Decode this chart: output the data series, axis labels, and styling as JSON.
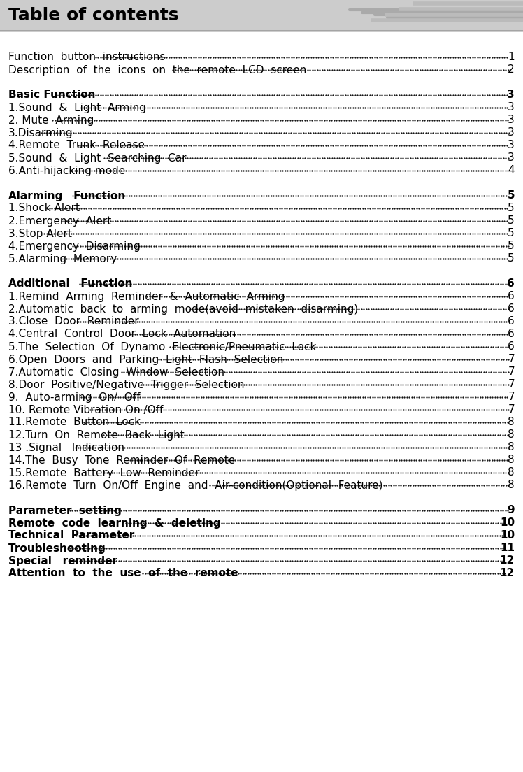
{
  "title": "Table of contents",
  "bg_color": "#ffffff",
  "header_bg": "#cccccc",
  "title_color": "#000000",
  "entries": [
    {
      "text": "Function  button  instructions",
      "dots": true,
      "page": "1",
      "bold": false,
      "indent": 0,
      "gap_before": true
    },
    {
      "text": "Description  of  the  icons  on  the  remote  LCD  screen",
      "dots": true,
      "page": "2",
      "bold": false,
      "indent": 0,
      "gap_before": false
    },
    {
      "text": "Basic Function",
      "dots": true,
      "page": "3",
      "bold": true,
      "indent": 0,
      "gap_before": true
    },
    {
      "text": "1.Sound  &  Light  Arming",
      "dots": true,
      "page": "3",
      "bold": false,
      "indent": 0,
      "gap_before": false
    },
    {
      "text": "2. Mute  Arming",
      "dots": true,
      "page": "3",
      "bold": false,
      "indent": 0,
      "gap_before": false
    },
    {
      "text": "3.Disarming",
      "dots": true,
      "page": "3",
      "bold": false,
      "indent": 0,
      "gap_before": false
    },
    {
      "text": "4.Remote  Trunk  Release",
      "dots": true,
      "page": "3",
      "bold": false,
      "indent": 0,
      "gap_before": false
    },
    {
      "text": "5.Sound  &  Light  Searching  Car",
      "dots": true,
      "page": "3",
      "bold": false,
      "indent": 0,
      "gap_before": false
    },
    {
      "text": "6.Anti-hijacking mode",
      "dots": true,
      "page": "4",
      "bold": false,
      "indent": 0,
      "gap_before": false
    },
    {
      "text": "Alarming   Function",
      "dots": true,
      "page": "5",
      "bold": true,
      "indent": 0,
      "gap_before": true
    },
    {
      "text": "1.Shock Alert",
      "dots": true,
      "page": "5",
      "bold": false,
      "indent": 0,
      "gap_before": false
    },
    {
      "text": "2.Emergency  Alert",
      "dots": true,
      "page": "5",
      "bold": false,
      "indent": 0,
      "gap_before": false
    },
    {
      "text": "3.Stop Alert",
      "dots": true,
      "page": "5",
      "bold": false,
      "indent": 0,
      "gap_before": false
    },
    {
      "text": "4.Emergency  Disarming",
      "dots": true,
      "page": "5",
      "bold": false,
      "indent": 0,
      "gap_before": false
    },
    {
      "text": "5.Alarming  Memory",
      "dots": true,
      "page": "5",
      "bold": false,
      "indent": 0,
      "gap_before": false
    },
    {
      "text": "Additional   Function",
      "dots": true,
      "page": "6",
      "bold": true,
      "indent": 0,
      "gap_before": true
    },
    {
      "text": "1.Remind  Arming  Reminder  &  Automatic  Arming",
      "dots": true,
      "page": "6",
      "bold": false,
      "indent": 0,
      "gap_before": false
    },
    {
      "text": "2.Automatic  back  to  arming  mode(avoid  mistaken  disarming)",
      "dots": true,
      "page": "6",
      "bold": false,
      "indent": 0,
      "gap_before": false
    },
    {
      "text": "3.Close  Door  Reminder",
      "dots": true,
      "page": "6",
      "bold": false,
      "indent": 0,
      "gap_before": false
    },
    {
      "text": "4.Central  Control  Door  Lock  Automation",
      "dots": true,
      "page": "6",
      "bold": false,
      "indent": 0,
      "gap_before": false
    },
    {
      "text": "5.The  Selection  Of  Dynamo  Electronic/Pneumatic  Lock",
      "dots": true,
      "page": "6",
      "bold": false,
      "indent": 0,
      "gap_before": false
    },
    {
      "text": "6.Open  Doors  and  Parking  Light  Flash  Selection",
      "dots": true,
      "page": "7",
      "bold": false,
      "indent": 0,
      "gap_before": false
    },
    {
      "text": "7.Automatic  Closing  Window  Selection",
      "dots": true,
      "page": "7",
      "bold": false,
      "indent": 0,
      "gap_before": false
    },
    {
      "text": "8.Door  Positive/Negative  Trigger  Selection",
      "dots": true,
      "page": "7",
      "bold": false,
      "indent": 0,
      "gap_before": false
    },
    {
      "text": "9.  Auto-arming  On/  Off",
      "dots": true,
      "page": "7",
      "bold": false,
      "indent": 0,
      "gap_before": false
    },
    {
      "text": "10. Remote Vibration On /Off",
      "dots": true,
      "page": "7",
      "bold": false,
      "indent": 0,
      "gap_before": false
    },
    {
      "text": "11.Remote  Button  Lock   ",
      "dots": true,
      "page": "8",
      "bold": false,
      "indent": 0,
      "gap_before": false
    },
    {
      "text": "12.Turn  On  Remote  Back  Light",
      "dots": true,
      "page": "8",
      "bold": false,
      "indent": 0,
      "gap_before": false
    },
    {
      "text": "13 .Signal   Indication",
      "dots": true,
      "page": "8",
      "bold": false,
      "indent": 0,
      "gap_before": false
    },
    {
      "text": "14.The  Busy  Tone  Reminder  Of  Remote  ",
      "dots": true,
      "page": "8",
      "bold": false,
      "indent": 0,
      "gap_before": false
    },
    {
      "text": "15.Remote  Battery  Low  Reminder",
      "dots": true,
      "page": "8",
      "bold": false,
      "indent": 0,
      "gap_before": false
    },
    {
      "text": "16.Remote  Turn  On/Off  Engine  and  Air-condition(Optional  Feature)",
      "dots": true,
      "page": "8",
      "bold": false,
      "indent": 0,
      "gap_before": false
    },
    {
      "text": "Parameter  setting",
      "dots": true,
      "page": "9",
      "bold": true,
      "indent": 0,
      "gap_before": true
    },
    {
      "text": "Remote  code  learning  &  deleting",
      "dots": true,
      "page": "10",
      "bold": true,
      "indent": 0,
      "gap_before": false
    },
    {
      "text": "Technical  Parameter",
      "dots": true,
      "page": "10",
      "bold": true,
      "indent": 0,
      "gap_before": false
    },
    {
      "text": "Troubleshooting   ",
      "dots": true,
      "page": "11",
      "bold": true,
      "indent": 0,
      "gap_before": false
    },
    {
      "text": "Special   reminder",
      "dots": true,
      "page": "12",
      "bold": true,
      "indent": 0,
      "gap_before": false
    },
    {
      "text": "Attention  to  the  use  of  the  remote",
      "dots": true,
      "page": "12",
      "bold": true,
      "indent": 0,
      "gap_before": false
    }
  ]
}
